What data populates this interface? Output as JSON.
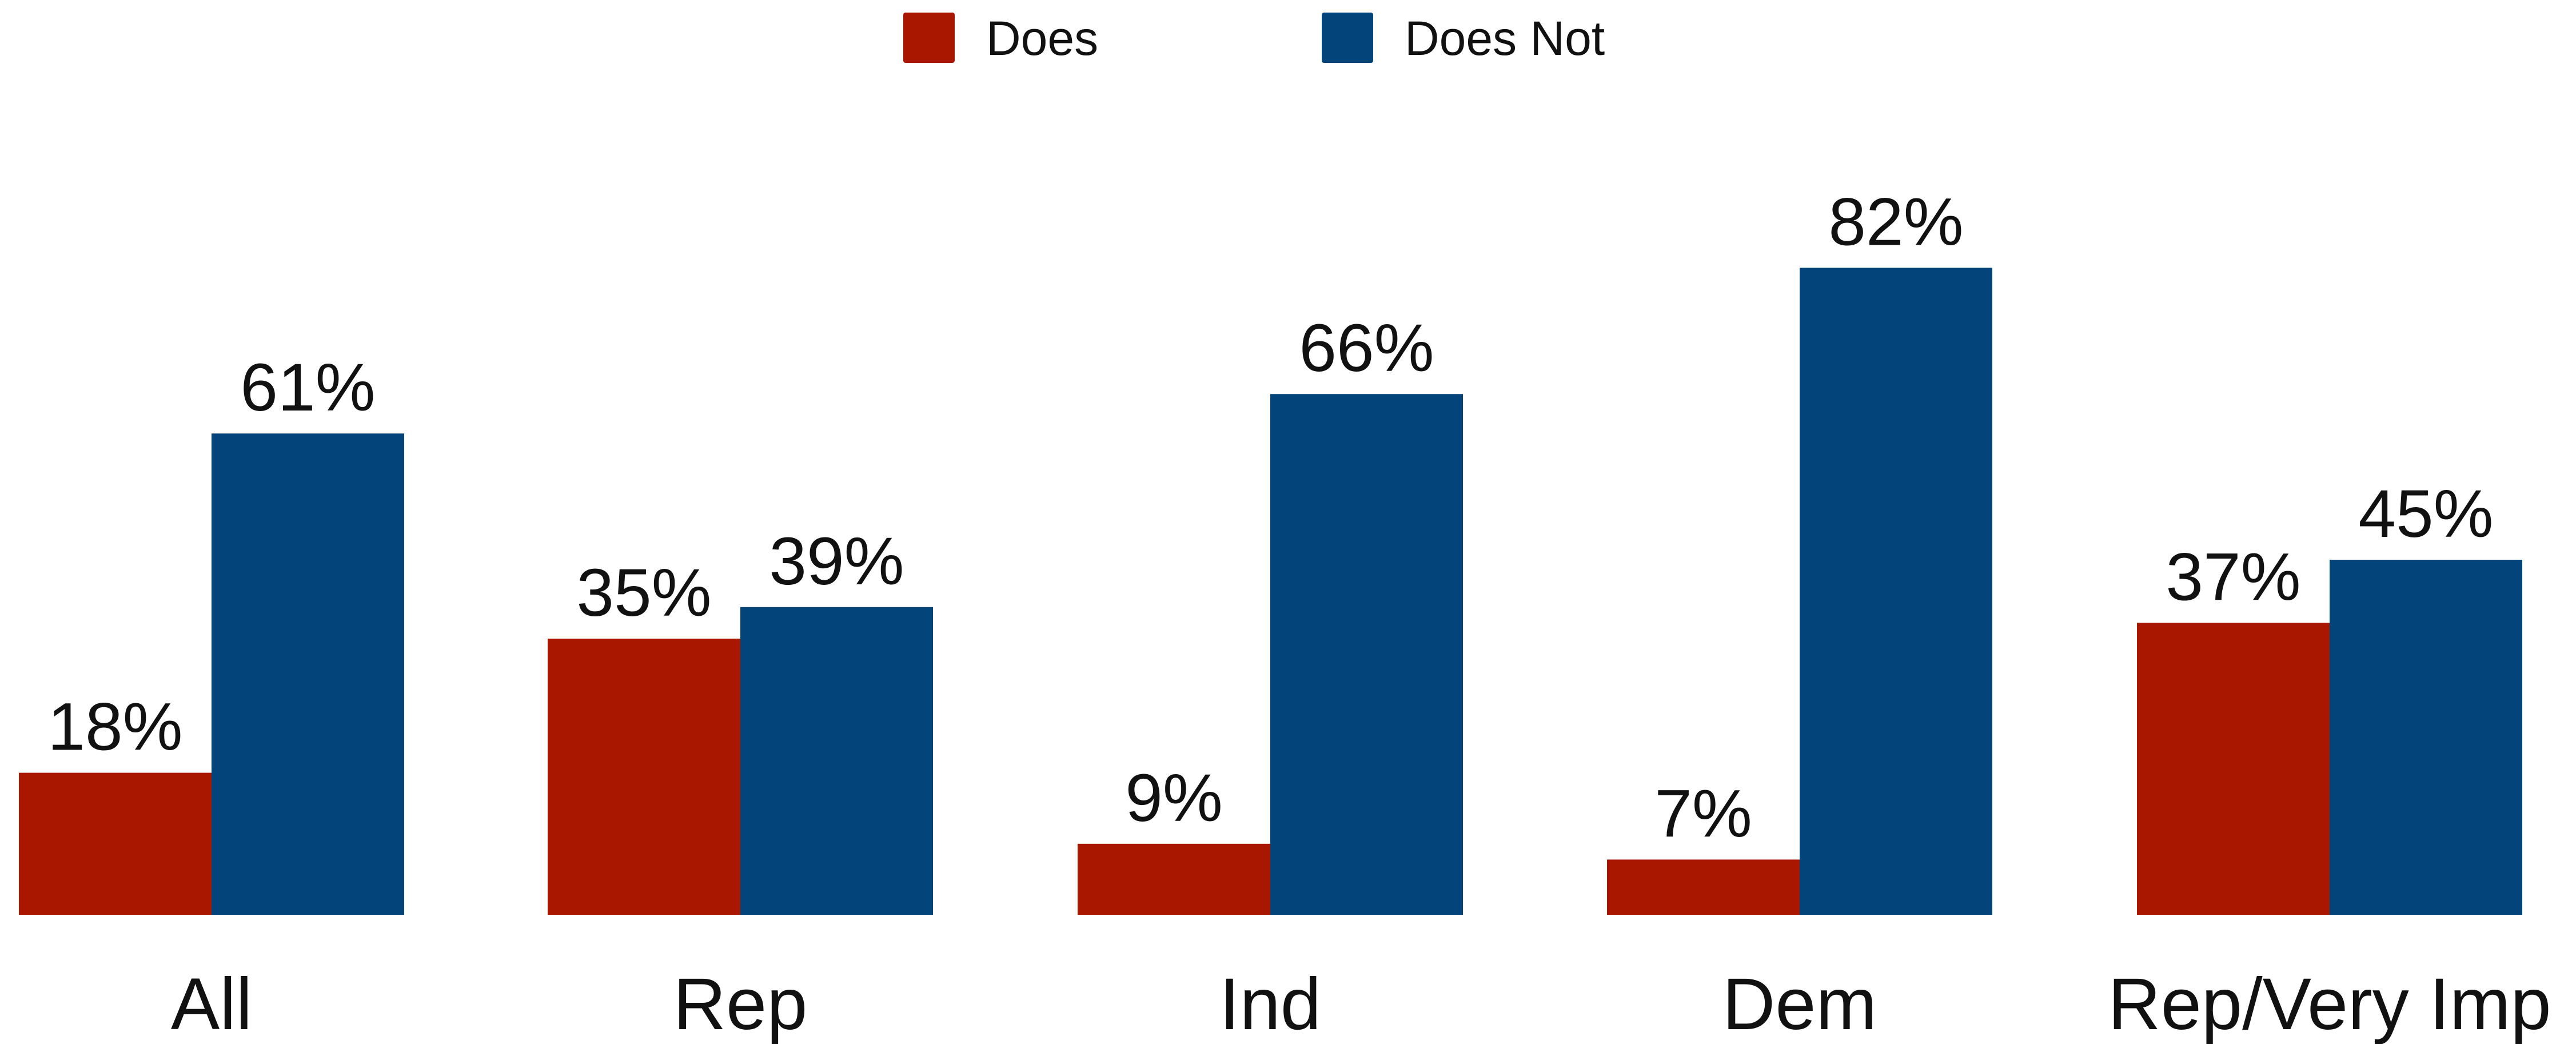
{
  "chart_data": {
    "type": "bar",
    "categories": [
      "All",
      "Rep",
      "Ind",
      "Dem",
      "Rep/Very Imp"
    ],
    "series": [
      {
        "name": "Does",
        "color": "#AA1700",
        "values": [
          18,
          35,
          9,
          7,
          37
        ],
        "labels": [
          "18%",
          "35%",
          "9%",
          "7%",
          "37%"
        ]
      },
      {
        "name": "Does Not",
        "color": "#03457A",
        "values": [
          61,
          39,
          66,
          82,
          45
        ],
        "labels": [
          "61%",
          "39%",
          "66%",
          "82%",
          "45%"
        ]
      }
    ],
    "ylim": [
      0,
      100
    ],
    "grid": false,
    "legend": "top-center"
  }
}
